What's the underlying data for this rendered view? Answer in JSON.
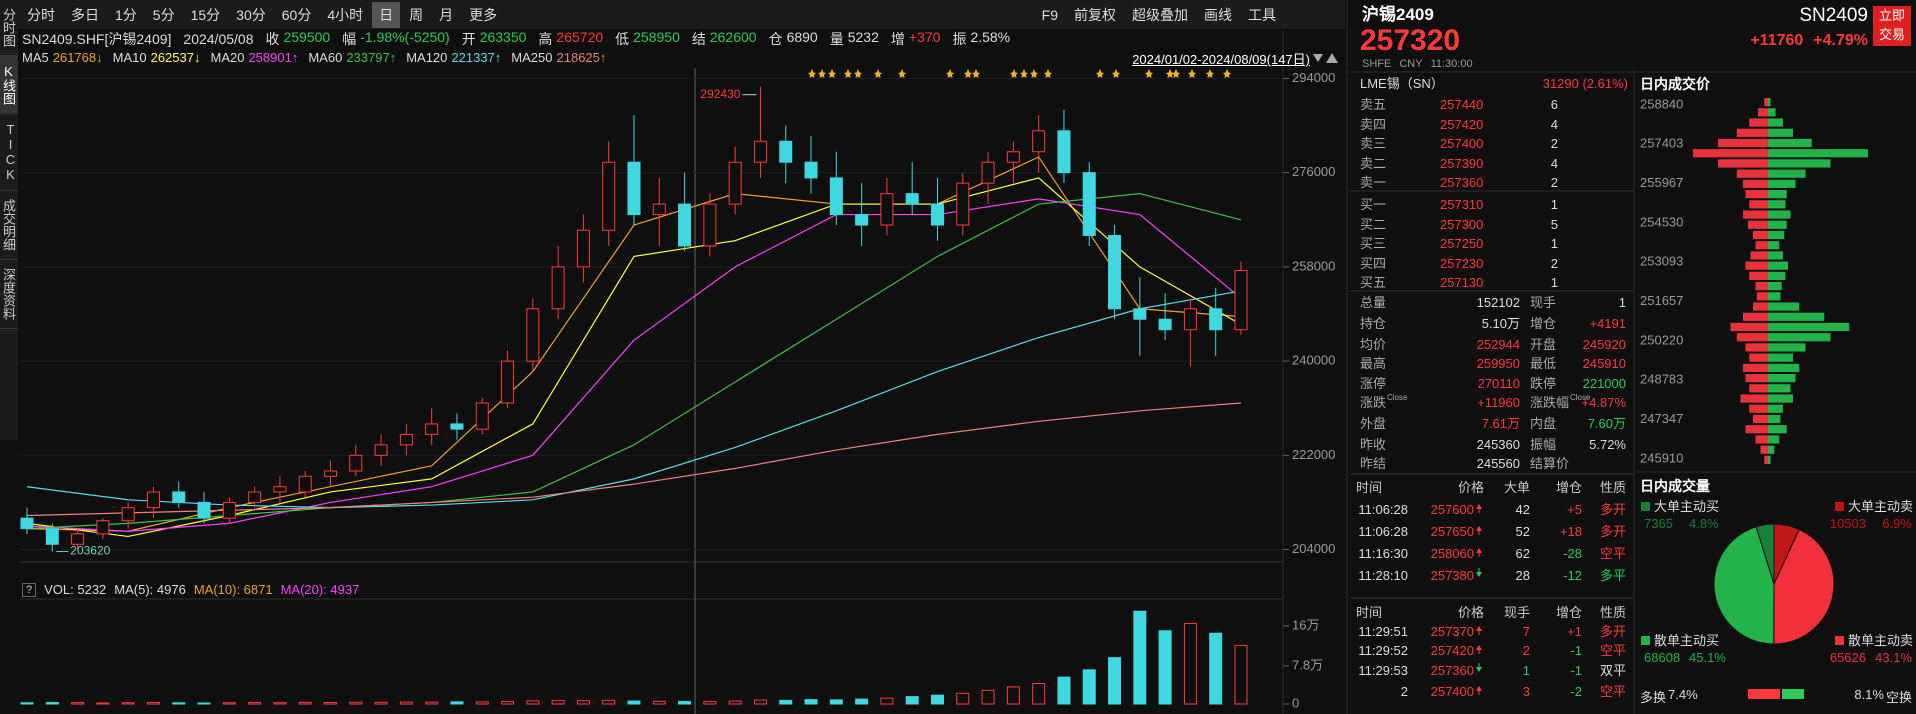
{
  "toolbar": {
    "periods": [
      "分时",
      "多日",
      "1分",
      "5分",
      "15分",
      "30分",
      "60分",
      "4小时",
      "日",
      "周",
      "月",
      "更多"
    ],
    "active": 8,
    "tools": [
      "F9",
      "前复权",
      "超级叠加",
      "画线",
      "工具"
    ]
  },
  "sidebar": {
    "items": [
      "分时图",
      "K线图",
      "TICK",
      "成交明细",
      "深度资料"
    ],
    "active": 1
  },
  "info": {
    "symbol": "SN2409.SHF[沪锡2409]",
    "date": "2024/05/08",
    "fields": [
      {
        "label": "收",
        "value": 259500,
        "color": "#2ecc55"
      },
      {
        "label": "幅",
        "value": "-1.98%(-5250)",
        "color": "#2ecc55"
      },
      {
        "label": "开",
        "value": 263350,
        "color": "#2ecc55"
      },
      {
        "label": "高",
        "value": 265720,
        "color": "#ff3a3a"
      },
      {
        "label": "低",
        "value": 258950,
        "color": "#2ecc55"
      },
      {
        "label": "结",
        "value": 262600,
        "color": "#2ecc55"
      },
      {
        "label": "仓",
        "value": 6890,
        "color": "#dddddd"
      },
      {
        "label": "量",
        "value": 5232,
        "color": "#dddddd"
      },
      {
        "label": "增",
        "value": "+370",
        "color": "#ff3a3a"
      },
      {
        "label": "振",
        "value": "2.58%",
        "color": "#dddddd"
      }
    ]
  },
  "kline": {
    "range": "2024/01/02-2024/08/09(147日)",
    "ma": [
      {
        "name": "MA5",
        "value": "261768↓",
        "color": "#f0a030",
        "values": [
          208000,
          207500,
          212000,
          216000,
          220000,
          238000,
          266000,
          272000,
          270000,
          270000,
          279000,
          250000,
          248500
        ]
      },
      {
        "name": "MA10",
        "value": "262537↓",
        "color": "#ffff40",
        "values": [
          209000,
          206500,
          210500,
          215000,
          217500,
          228000,
          260000,
          263000,
          270000,
          270000,
          275000,
          258000,
          247000
        ]
      },
      {
        "name": "MA20",
        "value": "258901↑",
        "color": "#ff40ff",
        "values": [
          208500,
          207500,
          209000,
          213000,
          216000,
          222000,
          244000,
          258000,
          268000,
          268000,
          271000,
          268000,
          252000
        ]
      },
      {
        "name": "MA60",
        "value": "233797↑",
        "color": "#40c040",
        "values": [
          208000,
          209000,
          210500,
          212000,
          213000,
          215000,
          224000,
          236000,
          248000,
          260000,
          270000,
          272000,
          267000
        ]
      },
      {
        "name": "MA120",
        "value": "221337↑",
        "color": "#60d8e8",
        "values": [
          216000,
          213500,
          212500,
          212000,
          212500,
          213500,
          217500,
          223500,
          230500,
          238000,
          244500,
          250000,
          253400
        ]
      },
      {
        "name": "MA250",
        "value": "218625↑",
        "color": "#f08080",
        "values": [
          210500,
          211000,
          211500,
          212000,
          213000,
          214000,
          216500,
          219500,
          223000,
          226000,
          228500,
          230500,
          232000
        ]
      }
    ],
    "ylim": [
      202000,
      296000
    ],
    "yticks": [
      294000,
      276000,
      258000,
      240000,
      222000,
      204000
    ],
    "up_color": "#ff3a3a",
    "down_color": "#3fd8e0",
    "candles": [
      [
        210000,
        212000,
        207000,
        208000
      ],
      [
        208000,
        209000,
        203620,
        205000
      ],
      [
        205000,
        208000,
        204000,
        207000
      ],
      [
        207000,
        210000,
        206000,
        209500
      ],
      [
        209500,
        213000,
        208000,
        212000
      ],
      [
        212000,
        216000,
        210000,
        215000
      ],
      [
        215000,
        217000,
        212000,
        213000
      ],
      [
        213000,
        215000,
        209000,
        210000
      ],
      [
        210000,
        214000,
        209000,
        213000
      ],
      [
        213000,
        216000,
        212000,
        215000
      ],
      [
        215000,
        218000,
        213000,
        216000
      ],
      [
        215000,
        219000,
        214000,
        218000
      ],
      [
        218000,
        221000,
        216000,
        219000
      ],
      [
        219000,
        224000,
        218000,
        222000
      ],
      [
        222000,
        226000,
        220000,
        224000
      ],
      [
        224000,
        228000,
        222000,
        226000
      ],
      [
        226000,
        231000,
        224000,
        228000
      ],
      [
        228000,
        230000,
        225000,
        227000
      ],
      [
        227000,
        233000,
        226000,
        232000
      ],
      [
        232000,
        242000,
        231000,
        240000
      ],
      [
        240000,
        252000,
        238000,
        250000
      ],
      [
        250000,
        262000,
        248000,
        258000
      ],
      [
        258000,
        268000,
        255000,
        265000
      ],
      [
        265000,
        282000,
        262000,
        278000
      ],
      [
        278000,
        287000,
        266000,
        268000
      ],
      [
        268000,
        275000,
        262000,
        270000
      ],
      [
        270000,
        276000,
        261000,
        262000
      ],
      [
        262000,
        272000,
        260000,
        270000
      ],
      [
        270000,
        281000,
        268000,
        278000
      ],
      [
        278000,
        292430,
        275000,
        282000
      ],
      [
        282000,
        285000,
        274000,
        278000
      ],
      [
        278000,
        283000,
        272000,
        275000
      ],
      [
        275000,
        280000,
        266000,
        268000
      ],
      [
        268000,
        274000,
        262000,
        266000
      ],
      [
        266000,
        275000,
        264000,
        272000
      ],
      [
        272000,
        278000,
        268000,
        270000
      ],
      [
        270000,
        275000,
        263000,
        266000
      ],
      [
        266000,
        276000,
        264000,
        274000
      ],
      [
        274000,
        280000,
        270000,
        278000
      ],
      [
        278000,
        282000,
        274000,
        280000
      ],
      [
        280000,
        287000,
        276000,
        284000
      ],
      [
        284000,
        288000,
        274000,
        276000
      ],
      [
        276000,
        278000,
        262000,
        264000
      ],
      [
        264000,
        266000,
        248000,
        250000
      ],
      [
        250000,
        256000,
        241000,
        248000
      ],
      [
        248000,
        253000,
        244000,
        246000
      ],
      [
        246000,
        252000,
        239000,
        250000
      ],
      [
        250000,
        254000,
        241000,
        246000
      ],
      [
        246000,
        259000,
        245000,
        257320
      ]
    ],
    "annotations": {
      "high": 292430,
      "low": 203620
    }
  },
  "volume": {
    "help": "?",
    "header": [
      {
        "text": "VOL: 5232",
        "color": "#dddddd"
      },
      {
        "text": "MA(5): 4976",
        "color": "#dddddd"
      },
      {
        "text": "MA(10): 6871",
        "color": "#f0a030"
      },
      {
        "text": "MA(20): 4937",
        "color": "#ff40ff"
      }
    ],
    "ylim": [
      0,
      213000
    ],
    "yticks": [
      {
        "value": 160000,
        "label": "16万"
      },
      {
        "value": 78000,
        "label": "7.8万"
      },
      0
    ],
    "values": [
      2500,
      3000,
      2800,
      2200,
      2600,
      3000,
      2400,
      2000,
      2600,
      3100,
      2800,
      3300,
      3000,
      3600,
      3400,
      4000,
      3800,
      4500,
      4200,
      5000,
      6500,
      7000,
      6800,
      7500,
      6000,
      5500,
      5200,
      5000,
      6000,
      8000,
      7500,
      9000,
      8500,
      10000,
      12000,
      15000,
      18000,
      22000,
      28000,
      35000,
      42000,
      55000,
      70000,
      95000,
      190000,
      150000,
      165000,
      145000,
      120000
    ]
  },
  "quote": {
    "name": "沪锡2409",
    "price": 257320,
    "meta": [
      "SHFE",
      "CNY",
      "11:30:00"
    ],
    "code": "SN2409",
    "change": "+11760",
    "change_pct": "+4.79%",
    "trade_button": "立即交易"
  },
  "lme": {
    "label": "LME锡（SN）",
    "value": "31290 (2.61%)"
  },
  "orderbook": {
    "asks": [
      {
        "label": "卖五",
        "price": 257440,
        "qty": 6
      },
      {
        "label": "卖四",
        "price": 257420,
        "qty": 4
      },
      {
        "label": "卖三",
        "price": 257400,
        "qty": 2
      },
      {
        "label": "卖二",
        "price": 257390,
        "qty": 4
      },
      {
        "label": "卖一",
        "price": 257360,
        "qty": 2
      }
    ],
    "bids": [
      {
        "label": "买一",
        "price": 257310,
        "qty": 1
      },
      {
        "label": "买二",
        "price": 257300,
        "qty": 5
      },
      {
        "label": "买三",
        "price": 257250,
        "qty": 1
      },
      {
        "label": "买四",
        "price": 257230,
        "qty": 2
      },
      {
        "label": "买五",
        "price": 257130,
        "qty": 1
      }
    ]
  },
  "stats": [
    [
      {
        "label": "总量",
        "value": 152102
      },
      {
        "label": "现手",
        "value": 1
      }
    ],
    [
      {
        "label": "持仓",
        "value": "5.10万"
      },
      {
        "label": "增仓",
        "value": "+4191",
        "color": "#ff3a3a"
      }
    ],
    [
      {
        "label": "均价",
        "value": 252944,
        "color": "#ff3a3a"
      },
      {
        "label": "开盘",
        "value": 245920,
        "color": "#ff3a3a"
      }
    ],
    [
      {
        "label": "最高",
        "value": 259950,
        "color": "#ff3a3a"
      },
      {
        "label": "最低",
        "value": 245910,
        "color": "#ff3a3a"
      }
    ],
    [
      {
        "label": "涨停",
        "value": 270110,
        "color": "#ff3a3a"
      },
      {
        "label": "跌停",
        "value": 221000,
        "color": "#2ecc55"
      }
    ],
    [
      {
        "label": "涨跌",
        "sup": "Close",
        "value": "+11960",
        "color": "#ff3a3a"
      },
      {
        "label": "涨跌幅",
        "sup": "Close",
        "value": "+4.87%",
        "color": "#ff3a3a"
      }
    ],
    [
      {
        "label": "外盘",
        "value": "7.61万",
        "color": "#ff3a3a"
      },
      {
        "label": "内盘",
        "value": "7.60万",
        "color": "#2ecc55"
      }
    ],
    [
      {
        "label": "昨收",
        "value": 245360
      },
      {
        "label": "振幅",
        "value": "5.72%"
      }
    ],
    [
      {
        "label": "昨结",
        "value": 245560
      },
      {
        "label": "结算价"
      }
    ]
  ],
  "big_trades": {
    "columns": [
      "时间",
      "价格",
      "大单",
      "增仓",
      "性质"
    ],
    "rows": [
      {
        "time": "11:06:28",
        "price": 257600,
        "dir": "up",
        "size": 42,
        "size_color": "#dddddd",
        "oi": "+5",
        "oi_color": "#ff3a3a",
        "type": "多开",
        "type_color": "#ff3a3a"
      },
      {
        "time": "11:06:28",
        "price": 257650,
        "dir": "up",
        "size": 52,
        "size_color": "#dddddd",
        "oi": "+18",
        "oi_color": "#ff3a3a",
        "type": "多开",
        "type_color": "#ff3a3a"
      },
      {
        "time": "11:16:30",
        "price": 258060,
        "dir": "up",
        "size": 62,
        "size_color": "#dddddd",
        "oi": "-28",
        "oi_color": "#2ecc55",
        "type": "空平",
        "type_color": "#ff3a3a"
      },
      {
        "time": "11:28:10",
        "price": 257380,
        "dir": "down",
        "size": 28,
        "size_color": "#dddddd",
        "oi": "-12",
        "oi_color": "#2ecc55",
        "type": "多平",
        "type_color": "#2ecc55"
      }
    ]
  },
  "trades": {
    "columns": [
      "时间",
      "价格",
      "现手",
      "增仓",
      "性质"
    ],
    "rows": [
      {
        "time": "11:29:51",
        "price": 257370,
        "dir": "up",
        "size": 7,
        "size_color": "#ff3a3a",
        "oi": "+1",
        "oi_color": "#ff3a3a",
        "type": "多开",
        "type_color": "#ff3a3a"
      },
      {
        "time": "11:29:52",
        "price": 257420,
        "dir": "up",
        "size": 2,
        "size_color": "#ff3a3a",
        "oi": "-1",
        "oi_color": "#2ecc55",
        "type": "空平",
        "type_color": "#ff3a3a"
      },
      {
        "time": "11:29:53",
        "price": 257360,
        "dir": "down",
        "size": 1,
        "size_color": "#2ecc55",
        "oi": "-1",
        "oi_color": "#2ecc55",
        "type": "双平",
        "type_color": "#dddddd"
      },
      {
        "time": "2",
        "price": 257400,
        "dir": "up",
        "size": 3,
        "size_color": "#ff3a3a",
        "oi": "-2",
        "oi_color": "#2ecc55",
        "type": "空平",
        "type_color": "#ff3a3a"
      }
    ]
  },
  "profile": {
    "title": "日内成交价",
    "ylim": [
      245690,
      259130
    ],
    "yticks": [
      258840,
      257403,
      255967,
      254530,
      253093,
      251657,
      250220,
      248783,
      247347,
      245910
    ],
    "xlim": [
      0,
      8000
    ],
    "sell_color": "#e8323c",
    "buy_color": "#22b34a",
    "sell": [
      300,
      800,
      1500,
      2500,
      4000,
      6000,
      4000,
      2500,
      2000,
      1800,
      1500,
      2000,
      1600,
      1200,
      1000,
      1400,
      1800,
      1500,
      1000,
      900,
      1200,
      2000,
      3000,
      2500,
      1800,
      1500,
      2000,
      1800,
      1500,
      2200,
      1500,
      1200,
      1800,
      1000,
      600,
      300
    ],
    "buy": [
      200,
      600,
      1200,
      2000,
      3500,
      8000,
      5000,
      3000,
      2200,
      1500,
      1400,
      1800,
      1500,
      1300,
      900,
      1200,
      1600,
      1400,
      1100,
      1000,
      2500,
      4500,
      6500,
      5000,
      3000,
      2000,
      2500,
      2200,
      1800,
      2000,
      1200,
      1000,
      1500,
      900,
      500,
      200
    ]
  },
  "pie": {
    "title": "日内成交量",
    "slices": [
      {
        "name": "大单主动卖",
        "volume": 10503,
        "value": 6.9,
        "value_label": "6.9%",
        "color": "#c01818"
      },
      {
        "name": "散单主动卖",
        "volume": 65626,
        "value": 43.1,
        "value_label": "43.1%",
        "color": "#f0303a"
      },
      {
        "name": "散单主动买",
        "volume": 68608,
        "value": 45.1,
        "value_label": "45.1%",
        "color": "#22b34a"
      },
      {
        "name": "大单主动买",
        "volume": 7365,
        "value": 4.8,
        "value_label": "4.8%",
        "color": "#17803a"
      }
    ]
  },
  "flows": [
    {
      "label": "多换",
      "value": "7.4%"
    },
    {
      "label": "空换",
      "value": "8.1%"
    }
  ]
}
